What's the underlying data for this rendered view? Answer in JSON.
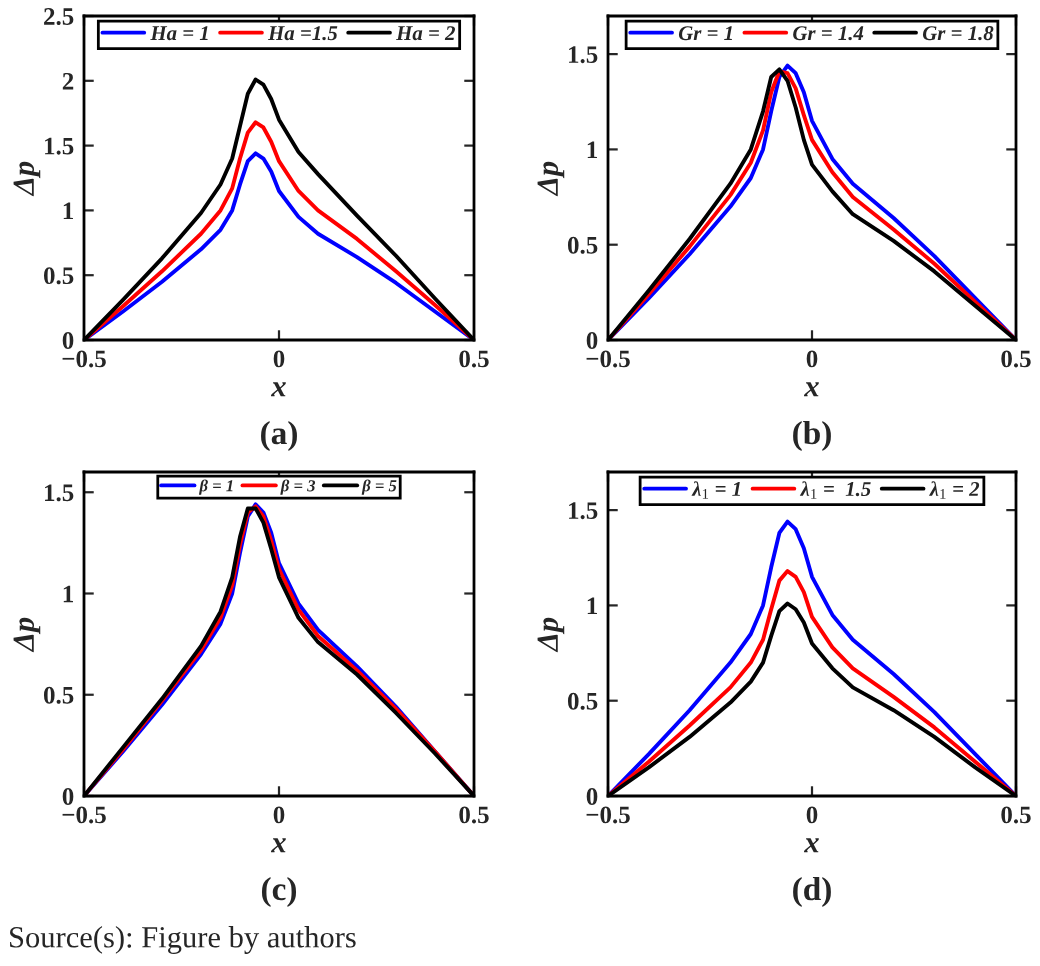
{
  "chart_data": [
    {
      "type": "line",
      "xlabel": "x",
      "ylabel": "Δp",
      "annotations": [
        "(a)"
      ],
      "legend": "top",
      "xlim": [
        -0.5,
        0.5
      ],
      "ylim": [
        0,
        2.5
      ],
      "xticks": [
        -0.5,
        0,
        0.5
      ],
      "yticks": [
        0,
        0.5,
        1,
        1.5,
        2,
        2.5
      ],
      "x": [
        -0.5,
        -0.4,
        -0.3,
        -0.2,
        -0.15,
        -0.12,
        -0.1,
        -0.08,
        -0.06,
        -0.04,
        -0.02,
        0,
        0.05,
        0.1,
        0.2,
        0.3,
        0.4,
        0.5
      ],
      "series": [
        {
          "name": "Ha = 1",
          "color": "#0000ff",
          "values": [
            0,
            0.22,
            0.45,
            0.7,
            0.85,
            1.0,
            1.2,
            1.38,
            1.44,
            1.4,
            1.3,
            1.15,
            0.95,
            0.82,
            0.64,
            0.44,
            0.22,
            0
          ]
        },
        {
          "name": "Ha =1.5",
          "color": "#ff0000",
          "values": [
            0,
            0.26,
            0.53,
            0.82,
            1.0,
            1.17,
            1.4,
            1.6,
            1.68,
            1.64,
            1.53,
            1.38,
            1.15,
            1.0,
            0.78,
            0.53,
            0.27,
            0
          ]
        },
        {
          "name": "Ha = 2",
          "color": "#000000",
          "values": [
            0,
            0.31,
            0.63,
            0.98,
            1.2,
            1.4,
            1.65,
            1.9,
            2.01,
            1.97,
            1.86,
            1.7,
            1.45,
            1.28,
            0.96,
            0.65,
            0.32,
            0
          ]
        }
      ]
    },
    {
      "type": "line",
      "xlabel": "x",
      "ylabel": "Δp",
      "annotations": [
        "(b)"
      ],
      "legend": "top",
      "xlim": [
        -0.5,
        0.5
      ],
      "ylim": [
        0,
        1.7
      ],
      "xticks": [
        -0.5,
        0,
        0.5
      ],
      "yticks": [
        0,
        0.5,
        1,
        1.5
      ],
      "x": [
        -0.5,
        -0.4,
        -0.3,
        -0.2,
        -0.15,
        -0.12,
        -0.1,
        -0.08,
        -0.06,
        -0.04,
        -0.02,
        0,
        0.05,
        0.1,
        0.2,
        0.3,
        0.4,
        0.5
      ],
      "series": [
        {
          "name": "Gr = 1",
          "color": "#0000ff",
          "values": [
            0,
            0.22,
            0.45,
            0.7,
            0.85,
            1.0,
            1.2,
            1.38,
            1.44,
            1.4,
            1.3,
            1.15,
            0.95,
            0.82,
            0.64,
            0.44,
            0.22,
            0
          ]
        },
        {
          "name": "Gr = 1.4",
          "color": "#ff0000",
          "values": [
            0,
            0.24,
            0.49,
            0.76,
            0.93,
            1.1,
            1.3,
            1.41,
            1.4,
            1.32,
            1.18,
            1.05,
            0.88,
            0.75,
            0.58,
            0.4,
            0.2,
            0
          ]
        },
        {
          "name": "Gr = 1.8",
          "color": "#000000",
          "values": [
            0,
            0.26,
            0.53,
            0.82,
            1.0,
            1.2,
            1.38,
            1.42,
            1.36,
            1.22,
            1.05,
            0.92,
            0.78,
            0.66,
            0.52,
            0.36,
            0.18,
            0
          ]
        }
      ]
    },
    {
      "type": "line",
      "xlabel": "x",
      "ylabel": "Δp",
      "annotations": [
        "(c)",
        "Source(s): Figure by authors"
      ],
      "legend": "top",
      "xlim": [
        -0.5,
        0.5
      ],
      "ylim": [
        0,
        1.6
      ],
      "xticks": [
        -0.5,
        0,
        0.5
      ],
      "yticks": [
        0,
        0.5,
        1,
        1.5
      ],
      "x": [
        -0.5,
        -0.4,
        -0.3,
        -0.2,
        -0.15,
        -0.12,
        -0.1,
        -0.08,
        -0.06,
        -0.04,
        -0.02,
        0,
        0.05,
        0.1,
        0.2,
        0.3,
        0.4,
        0.5
      ],
      "series": [
        {
          "name": "β = 1",
          "color": "#0000ff",
          "values": [
            0,
            0.22,
            0.45,
            0.7,
            0.85,
            1.0,
            1.2,
            1.38,
            1.44,
            1.4,
            1.3,
            1.15,
            0.95,
            0.82,
            0.64,
            0.44,
            0.22,
            0
          ]
        },
        {
          "name": "β = 3",
          "color": "#ff0000",
          "values": [
            0,
            0.23,
            0.47,
            0.72,
            0.88,
            1.04,
            1.24,
            1.4,
            1.43,
            1.38,
            1.26,
            1.12,
            0.92,
            0.79,
            0.62,
            0.43,
            0.22,
            0
          ]
        },
        {
          "name": "β = 5",
          "color": "#000000",
          "values": [
            0,
            0.24,
            0.48,
            0.74,
            0.91,
            1.08,
            1.28,
            1.42,
            1.42,
            1.35,
            1.22,
            1.08,
            0.88,
            0.76,
            0.6,
            0.41,
            0.21,
            0
          ]
        }
      ]
    },
    {
      "type": "line",
      "xlabel": "x",
      "ylabel": "Δp",
      "annotations": [
        "(d)"
      ],
      "legend": "top",
      "xlim": [
        -0.5,
        0.5
      ],
      "ylim": [
        0,
        1.7
      ],
      "xticks": [
        -0.5,
        0,
        0.5
      ],
      "yticks": [
        0,
        0.5,
        1,
        1.5
      ],
      "x": [
        -0.5,
        -0.4,
        -0.3,
        -0.2,
        -0.15,
        -0.12,
        -0.1,
        -0.08,
        -0.06,
        -0.04,
        -0.02,
        0,
        0.05,
        0.1,
        0.2,
        0.3,
        0.4,
        0.5
      ],
      "series": [
        {
          "name": "λ$_{1}$ = 1",
          "color": "#0000ff",
          "values": [
            0,
            0.22,
            0.45,
            0.7,
            0.85,
            1.0,
            1.2,
            1.38,
            1.44,
            1.4,
            1.3,
            1.15,
            0.95,
            0.82,
            0.64,
            0.44,
            0.22,
            0
          ]
        },
        {
          "name": "λ$_{1}$ =  1.5",
          "color": "#ff0000",
          "values": [
            0,
            0.18,
            0.37,
            0.57,
            0.7,
            0.82,
            0.98,
            1.13,
            1.18,
            1.15,
            1.07,
            0.94,
            0.78,
            0.67,
            0.52,
            0.36,
            0.18,
            0
          ]
        },
        {
          "name": "λ$_{1}$ = 2",
          "color": "#000000",
          "values": [
            0,
            0.15,
            0.31,
            0.49,
            0.6,
            0.7,
            0.84,
            0.97,
            1.01,
            0.98,
            0.91,
            0.8,
            0.67,
            0.57,
            0.45,
            0.31,
            0.15,
            0
          ]
        }
      ]
    }
  ]
}
